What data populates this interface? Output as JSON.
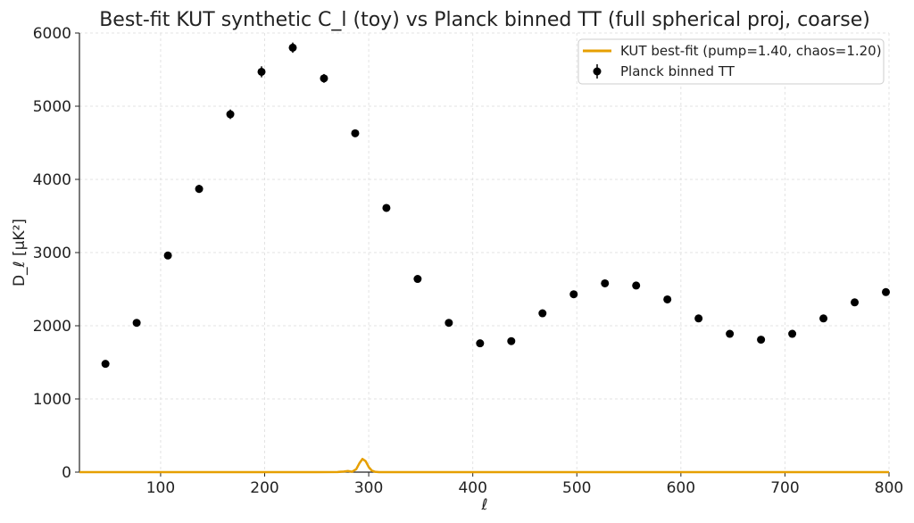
{
  "chart_data": {
    "type": "scatter",
    "title": "Best-fit KUT synthetic C_l (toy) vs Planck binned TT (full spherical proj, coarse)",
    "xlabel": "ℓ",
    "ylabel": "D_ℓ [μK²]",
    "xlim": [
      22,
      800
    ],
    "ylim": [
      0,
      6000
    ],
    "xticks": [
      100,
      200,
      300,
      400,
      500,
      600,
      700,
      800
    ],
    "yticks": [
      0,
      1000,
      2000,
      3000,
      4000,
      5000,
      6000
    ],
    "grid": true,
    "legend_position": "top-right",
    "series": [
      {
        "name": "KUT best-fit (pump=1.40, chaos=1.20)",
        "kind": "line",
        "color": "#e69f00",
        "x": [
          22,
          250,
          270,
          276,
          280,
          284,
          288,
          291,
          294,
          297,
          300,
          303,
          306,
          310,
          330,
          800
        ],
        "y": [
          0,
          0,
          2,
          8,
          15,
          5,
          40,
          120,
          180,
          150,
          70,
          20,
          5,
          0,
          0,
          0
        ]
      },
      {
        "name": "Planck binned TT",
        "kind": "errorbar",
        "color": "#000000",
        "x": [
          47,
          77,
          107,
          137,
          167,
          197,
          227,
          257,
          287,
          317,
          347,
          377,
          407,
          437,
          467,
          497,
          527,
          557,
          587,
          617,
          647,
          677,
          707,
          737,
          767,
          797
        ],
        "y": [
          1480,
          2040,
          2960,
          3870,
          4890,
          5470,
          5800,
          5380,
          4630,
          3610,
          2640,
          2040,
          1760,
          1790,
          2170,
          2430,
          2580,
          2550,
          2360,
          2100,
          1890,
          1810,
          1890,
          2100,
          2320,
          2460
        ],
        "yerr": [
          25,
          35,
          45,
          55,
          65,
          75,
          70,
          60,
          45,
          30,
          20,
          15,
          15,
          15,
          15,
          18,
          18,
          18,
          18,
          18,
          18,
          18,
          20,
          20,
          22,
          22
        ]
      }
    ]
  }
}
